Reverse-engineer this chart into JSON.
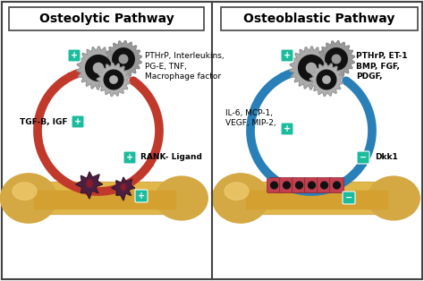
{
  "left_title": "Osteolytic Pathway",
  "right_title": "Osteoblastic Pathway",
  "bg_color": "#f5f5f5",
  "border_color": "#444444",
  "left_texts": {
    "top_right": "PTHrP, Interleukins,\nPG-E, TNF,\nMacrophage factor",
    "left_mid": "TGF-B, IGF",
    "bottom_right": "RANK- Ligand"
  },
  "right_texts": {
    "top_right": "PTHrP, ET-1\nBMP, FGF,\nPDGF,",
    "left_mid": "IL-6, MCP-1,\nVEGF, MIP-2,",
    "bottom_right": "Dkk1"
  },
  "arrow_color_left": "#c0392b",
  "arrow_color_right": "#2980b9",
  "plus_color": "#1abc9c",
  "minus_color": "#1abc9c",
  "gear_gray": "#a0a0a0",
  "gear_dark": "#111111",
  "title_fontsize": 10,
  "label_fontsize": 6.5
}
